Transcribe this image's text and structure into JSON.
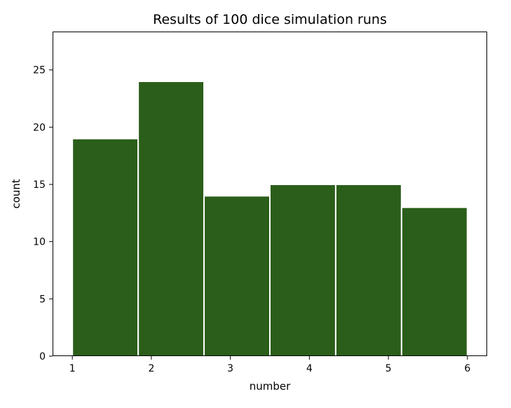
{
  "chart_data": {
    "type": "bar",
    "title": "Results of 100 dice simulation runs",
    "xlabel": "number",
    "ylabel": "count",
    "bins": [
      {
        "x0": 1.0,
        "x1": 1.8333,
        "value": 19
      },
      {
        "x0": 1.8333,
        "x1": 2.6667,
        "value": 24
      },
      {
        "x0": 2.6667,
        "x1": 3.5,
        "value": 14
      },
      {
        "x0": 3.5,
        "x1": 4.3333,
        "value": 15
      },
      {
        "x0": 4.3333,
        "x1": 5.1667,
        "value": 15
      },
      {
        "x0": 5.1667,
        "x1": 6.0,
        "value": 13
      }
    ],
    "xlim": [
      0.75,
      6.25
    ],
    "ylim": [
      0,
      28.35
    ],
    "xticks": [
      1,
      2,
      3,
      4,
      5,
      6
    ],
    "yticks": [
      0,
      5,
      10,
      15,
      20,
      25
    ],
    "bar_color": "#2b5e1a",
    "edge_color": "#ffffff",
    "grid": false,
    "legend": "none"
  }
}
